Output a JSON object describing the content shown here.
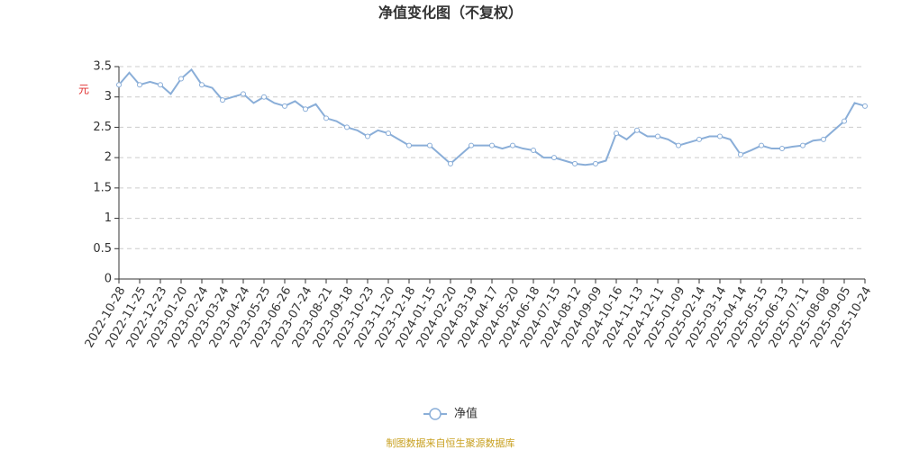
{
  "chart_data": {
    "type": "line",
    "title": "净值变化图（不复权）",
    "y_label": "元",
    "source": "制图数据来自恒生聚源数据库",
    "categories": [
      "2022-10-28",
      null,
      "2022-11-25",
      null,
      "2022-12-23",
      null,
      "2023-01-20",
      null,
      "2023-02-24",
      null,
      "2023-03-24",
      null,
      "2023-04-24",
      null,
      "2023-05-25",
      null,
      "2023-06-26",
      null,
      "2023-07-24",
      null,
      "2023-08-21",
      null,
      "2023-09-18",
      null,
      "2023-10-23",
      null,
      "2023-11-20",
      null,
      "2023-12-18",
      null,
      "2024-01-15",
      null,
      "2024-02-20",
      null,
      "2024-03-19",
      null,
      "2024-04-17",
      null,
      "2024-05-20",
      null,
      "2024-06-18",
      null,
      "2024-07-15",
      null,
      "2024-08-12",
      null,
      "2024-09-09",
      null,
      "2024-10-16",
      null,
      "2024-11-13",
      null,
      "2024-12-11",
      null,
      "2025-01-09",
      null,
      "2025-02-14",
      null,
      "2025-03-14",
      null,
      "2025-04-14",
      null,
      "2025-05-15",
      null,
      "2025-06-13",
      null,
      "2025-07-11",
      null,
      "2025-08-08",
      null,
      "2025-09-05",
      null,
      "2025-10-24"
    ],
    "series": [
      {
        "name": "净值",
        "color": "#8aaed8",
        "values": [
          3.2,
          3.4,
          3.2,
          3.25,
          3.2,
          3.05,
          3.3,
          3.45,
          3.2,
          3.15,
          2.95,
          3.0,
          3.05,
          2.9,
          3.0,
          2.9,
          2.85,
          2.93,
          2.8,
          2.88,
          2.65,
          2.6,
          2.5,
          2.45,
          2.35,
          2.45,
          2.4,
          2.3,
          2.2,
          2.2,
          2.2,
          2.05,
          1.9,
          2.05,
          2.2,
          2.2,
          2.2,
          2.15,
          2.2,
          2.15,
          2.12,
          2.0,
          2.0,
          1.95,
          1.9,
          1.88,
          1.9,
          1.95,
          2.4,
          2.3,
          2.45,
          2.35,
          2.35,
          2.3,
          2.2,
          2.25,
          2.3,
          2.35,
          2.35,
          2.3,
          2.05,
          2.12,
          2.2,
          2.15,
          2.15,
          2.18,
          2.2,
          2.28,
          2.3,
          2.45,
          2.6,
          2.9,
          2.85
        ]
      }
    ],
    "ylim": [
      0,
      3.5
    ],
    "yticks": [
      0,
      0.5,
      1,
      1.5,
      2,
      2.5,
      3,
      3.5
    ],
    "grid": true,
    "legend": "bottom"
  }
}
